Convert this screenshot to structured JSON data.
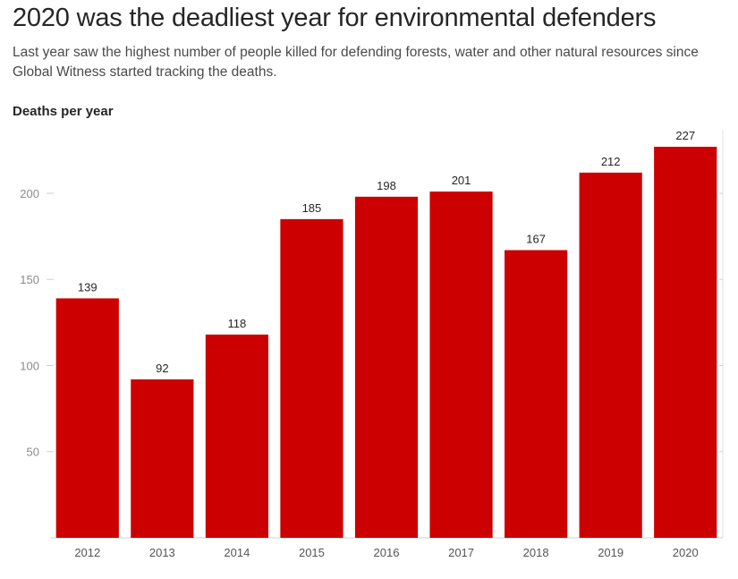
{
  "chart_data": {
    "type": "bar",
    "title": "2020 was the deadliest year for environmental defenders",
    "subtitle": "Last year saw the highest number of people killed for defending forests, water and other natural resources since Global Witness started tracking the deaths.",
    "ylabel": "Deaths per year",
    "xlabel": "",
    "categories": [
      "2012",
      "2013",
      "2014",
      "2015",
      "2016",
      "2017",
      "2018",
      "2019",
      "2020"
    ],
    "values": [
      139,
      92,
      118,
      185,
      198,
      201,
      167,
      212,
      227
    ],
    "ylim": [
      0,
      227
    ],
    "yticks": [
      50,
      100,
      150,
      200
    ],
    "grid": false,
    "bar_color": "#cc0000",
    "data_labels": true
  }
}
